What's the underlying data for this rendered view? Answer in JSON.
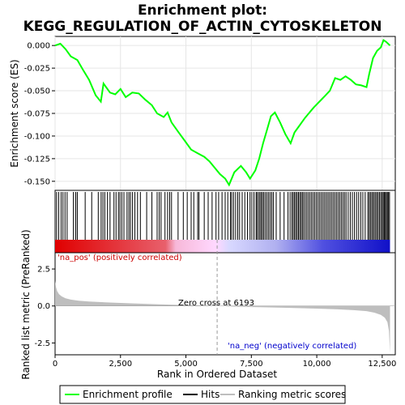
{
  "chart_data": {
    "type": "line",
    "title_line1": "Enrichment plot:",
    "title_line2": "KEGG_REGULATION_OF_ACTIN_CYTOSKELETON",
    "es_panel": {
      "ylabel": "Enrichment score (ES)",
      "ylim": [
        -0.16,
        0.01
      ],
      "yticks": [
        0.0,
        -0.025,
        -0.05,
        -0.075,
        -0.1,
        -0.125,
        -0.15
      ],
      "ytick_labels": [
        "0.000",
        "-0.025",
        "-0.050",
        "-0.075",
        "-0.100",
        "-0.125",
        "-0.150"
      ],
      "series_name": "Enrichment profile",
      "color": "#00ff00",
      "x": [
        0,
        200,
        400,
        600,
        850,
        1050,
        1300,
        1550,
        1750,
        1850,
        2100,
        2300,
        2500,
        2700,
        2950,
        3200,
        3450,
        3700,
        3900,
        4150,
        4300,
        4450,
        4700,
        4950,
        5200,
        5450,
        5700,
        5900,
        6100,
        6300,
        6500,
        6650,
        6850,
        7100,
        7300,
        7450,
        7650,
        7800,
        7950,
        8100,
        8250,
        8400,
        8600,
        8800,
        9000,
        9150,
        9350,
        9550,
        9750,
        9900,
        10100,
        10300,
        10500,
        10700,
        10900,
        11100,
        11300,
        11500,
        11700,
        11900,
        12000,
        12150,
        12300,
        12450,
        12550,
        12650,
        12800
      ],
      "y": [
        0.0,
        0.002,
        -0.004,
        -0.012,
        -0.016,
        -0.026,
        -0.038,
        -0.055,
        -0.062,
        -0.042,
        -0.052,
        -0.054,
        -0.048,
        -0.057,
        -0.052,
        -0.053,
        -0.06,
        -0.066,
        -0.075,
        -0.079,
        -0.074,
        -0.085,
        -0.095,
        -0.105,
        -0.115,
        -0.119,
        -0.123,
        -0.128,
        -0.135,
        -0.142,
        -0.147,
        -0.154,
        -0.14,
        -0.133,
        -0.14,
        -0.147,
        -0.138,
        -0.125,
        -0.108,
        -0.093,
        -0.078,
        -0.074,
        -0.085,
        -0.098,
        -0.108,
        -0.096,
        -0.088,
        -0.08,
        -0.073,
        -0.068,
        -0.062,
        -0.056,
        -0.05,
        -0.036,
        -0.038,
        -0.034,
        -0.038,
        -0.043,
        -0.044,
        -0.046,
        -0.032,
        -0.014,
        -0.006,
        -0.002,
        0.006,
        0.004,
        0.0
      ]
    },
    "hits": {
      "series_name": "Hits",
      "ranks": [
        60,
        140,
        230,
        300,
        380,
        460,
        700,
        790,
        850,
        1150,
        1400,
        1650,
        1760,
        1830,
        1900,
        2000,
        2100,
        2250,
        2330,
        2420,
        2480,
        2550,
        2630,
        2750,
        2820,
        2880,
        2960,
        3050,
        3150,
        3260,
        3500,
        3700,
        3900,
        3980,
        4050,
        4200,
        4300,
        4380,
        4450,
        4700,
        4900,
        5050,
        5200,
        5300,
        5450,
        5500,
        5700,
        5850,
        6000,
        6150,
        6250,
        6380,
        6500,
        6600,
        6700,
        6750,
        6820,
        6900,
        6980,
        7050,
        7150,
        7250,
        7350,
        7450,
        7520,
        7600,
        7680,
        7720,
        7780,
        7830,
        7880,
        7930,
        7980,
        8040,
        8100,
        8160,
        8220,
        8280,
        8340,
        8450,
        8600,
        8750,
        8900,
        8980,
        9050,
        9100,
        9150,
        9200,
        9250,
        9300,
        9350,
        9400,
        9450,
        9500,
        9560,
        9620,
        9680,
        9740,
        9800,
        9860,
        9920,
        9980,
        10040,
        10100,
        10160,
        10220,
        10280,
        10340,
        10400,
        10460,
        10520,
        10580,
        10640,
        10700,
        10760,
        10820,
        10880,
        10940,
        11000,
        11060,
        11120,
        11200,
        11280,
        11360,
        11440,
        11520,
        11600,
        11680,
        11760,
        11850,
        11950,
        12000,
        12050,
        12100,
        12150,
        12200,
        12250,
        12300,
        12350,
        12400,
        12450,
        12500,
        12540,
        12580,
        12620,
        12660,
        12700,
        12740,
        12780
      ]
    },
    "metric_panel": {
      "ylabel": "Ranked list metric (PreRanked)",
      "series_name": "Ranking metric scores",
      "color": "#bebebe",
      "ylim": [
        -3.3,
        3.6
      ],
      "yticks": [
        2.5,
        0.0,
        -2.5
      ],
      "ytick_labels": [
        "2.5",
        "0.0",
        "-2.5"
      ],
      "x": [
        0,
        30,
        80,
        150,
        250,
        400,
        600,
        900,
        1300,
        2000,
        3000,
        4000,
        5000,
        6193,
        7000,
        8000,
        9000,
        10000,
        10800,
        11400,
        11900,
        12200,
        12450,
        12600,
        12700,
        12760,
        12800
      ],
      "y": [
        1.7,
        1.3,
        1.0,
        0.8,
        0.65,
        0.52,
        0.43,
        0.36,
        0.3,
        0.24,
        0.17,
        0.11,
        0.06,
        0.0,
        -0.05,
        -0.09,
        -0.13,
        -0.18,
        -0.23,
        -0.28,
        -0.35,
        -0.45,
        -0.6,
        -0.8,
        -1.1,
        -1.7,
        -3.2
      ],
      "pos_label": "'na_pos' (positively correlated)",
      "neg_label": "'na_neg' (negatively correlated)",
      "zero_cross_label": "Zero cross at 6193",
      "zero_cross": 6193
    },
    "xlabel": "Rank in Ordered Dataset",
    "xlim": [
      0,
      13000
    ],
    "xticks": [
      0,
      2500,
      5000,
      7500,
      10000,
      12500
    ],
    "xtick_labels": [
      "0",
      "2,500",
      "5,000",
      "7,500",
      "10,000",
      "12,500"
    ],
    "n_genes": 12800,
    "legend": {
      "placement": "bottom",
      "items": [
        {
          "label": "Enrichment profile",
          "color": "#00ff00"
        },
        {
          "label": "Hits",
          "color": "#000000"
        },
        {
          "label": "Ranking metric scores",
          "color": "#bebebe"
        }
      ]
    }
  }
}
